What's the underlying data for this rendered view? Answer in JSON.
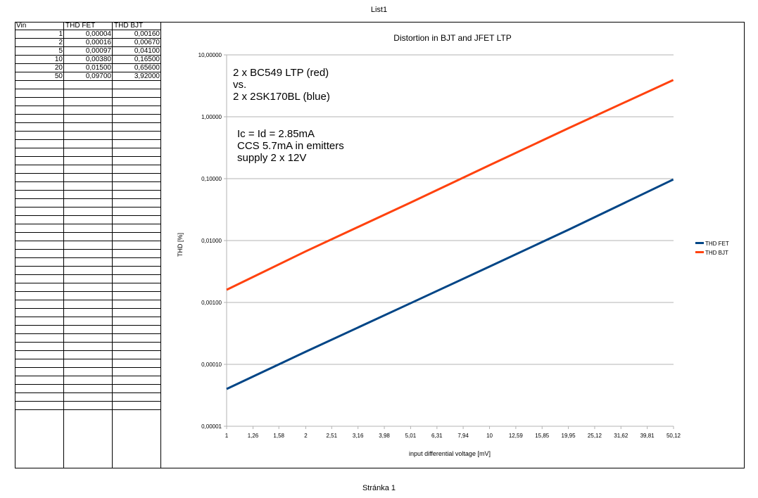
{
  "page": {
    "title": "List1",
    "footer": "Stránka 1"
  },
  "table": {
    "headers": [
      "Vin",
      "THD FET",
      "THD BJT"
    ],
    "rows": [
      [
        "1",
        "0,00004",
        "0,00160"
      ],
      [
        "2",
        "0,00016",
        "0,00670"
      ],
      [
        "5",
        "0,00097",
        "0,04100"
      ],
      [
        "10",
        "0,00380",
        "0,16500"
      ],
      [
        "20",
        "0,01500",
        "0,65600"
      ],
      [
        "50",
        "0,09700",
        "3,92000"
      ]
    ],
    "empty_rows": 39
  },
  "chart_data": {
    "type": "line",
    "title": "Distortion in BJT and JFET LTP",
    "xlabel": "input differential voltage [mV]",
    "ylabel": "THD [%]",
    "x_tick_labels": [
      "1",
      "1,26",
      "1,58",
      "2",
      "2,51",
      "3,16",
      "3,98",
      "5,01",
      "6,31",
      "7,94",
      "10",
      "12,59",
      "15,85",
      "19,95",
      "25,12",
      "31,62",
      "39,81",
      "50,12"
    ],
    "y_scale": "log",
    "ylim": [
      1e-05,
      10
    ],
    "y_tick_labels": [
      "0,00001",
      "0,00010",
      "0,00100",
      "0,01000",
      "0,10000",
      "1,00000",
      "10,00000"
    ],
    "y_grid": true,
    "legend_position": "right",
    "series": [
      {
        "name": "THD FET",
        "color": "#004586",
        "x": [
          1,
          2,
          5,
          10,
          20,
          50
        ],
        "values": [
          4e-05,
          0.00016,
          0.00097,
          0.0038,
          0.015,
          0.097
        ]
      },
      {
        "name": "THD BJT",
        "color": "#ff420e",
        "x": [
          1,
          2,
          5,
          10,
          20,
          50
        ],
        "values": [
          0.0016,
          0.0067,
          0.041,
          0.165,
          0.656,
          3.92
        ]
      }
    ],
    "annotations": [
      {
        "lines": [
          "2 x BC549 LTP (red)",
          "vs.",
          "2 x 2SK170BL (blue)"
        ]
      },
      {
        "lines": [
          "Ic = Id = 2.85mA",
          "CCS 5.7mA in emitters",
          "supply 2 x 12V"
        ]
      }
    ]
  }
}
